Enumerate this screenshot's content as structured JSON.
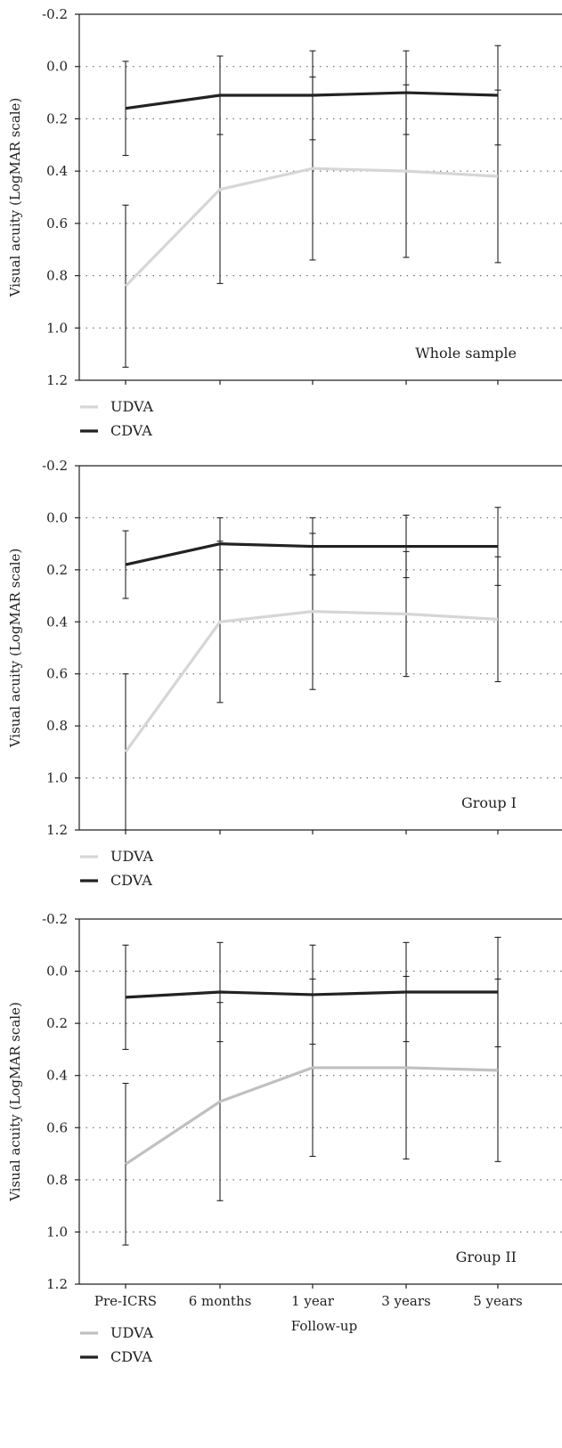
{
  "chart_data": [
    {
      "type": "line",
      "annotation": "Whole sample",
      "ylabel": "Visual acuity (LogMAR scale)",
      "xlabel": "",
      "ylim": [
        1.2,
        -0.2
      ],
      "yticks": [
        "-0.2",
        "0.0",
        "0.2",
        "0.4",
        "0.6",
        "0.8",
        "1.0",
        "1.2"
      ],
      "yticks_values": [
        -0.2,
        0.0,
        0.2,
        0.4,
        0.6,
        0.8,
        1.0,
        1.2
      ],
      "categories": [
        "Pre-ICRS",
        "6 months",
        "1 year",
        "3 years",
        "5 years"
      ],
      "show_xtick_labels": false,
      "grid": "horizontal dotted",
      "series": [
        {
          "name": "UDVA",
          "color": "#d6d6d6",
          "values": [
            0.84,
            0.47,
            0.39,
            0.4,
            0.42
          ],
          "error": [
            0.31,
            0.36,
            0.35,
            0.33,
            0.33
          ]
        },
        {
          "name": "CDVA",
          "color": "#222222",
          "values": [
            0.16,
            0.11,
            0.11,
            0.1,
            0.11
          ],
          "error": [
            0.18,
            0.15,
            0.17,
            0.16,
            0.19
          ]
        }
      ],
      "legend": [
        "UDVA",
        "CDVA"
      ]
    },
    {
      "type": "line",
      "annotation": "Group I",
      "ylabel": "Visual acuity (LogMAR scale)",
      "xlabel": "",
      "ylim": [
        1.2,
        -0.2
      ],
      "yticks": [
        "-0.2",
        "0.0",
        "0.2",
        "0.4",
        "0.6",
        "0.8",
        "1.0",
        "1.2"
      ],
      "yticks_values": [
        -0.2,
        0.0,
        0.2,
        0.4,
        0.6,
        0.8,
        1.0,
        1.2
      ],
      "categories": [
        "Pre-ICRS",
        "6 months",
        "1 year",
        "3 years",
        "5 years"
      ],
      "show_xtick_labels": false,
      "grid": "horizontal dotted",
      "series": [
        {
          "name": "UDVA",
          "color": "#d6d6d6",
          "values": [
            0.9,
            0.4,
            0.36,
            0.37,
            0.39
          ],
          "error": [
            0.3,
            0.31,
            0.3,
            0.24,
            0.24
          ]
        },
        {
          "name": "CDVA",
          "color": "#222222",
          "values": [
            0.18,
            0.1,
            0.11,
            0.11,
            0.11
          ],
          "error": [
            0.13,
            0.1,
            0.11,
            0.12,
            0.15
          ]
        }
      ],
      "legend": [
        "UDVA",
        "CDVA"
      ]
    },
    {
      "type": "line",
      "annotation": "Group II",
      "ylabel": "Visual acuity (LogMAR scale)",
      "xlabel": "Follow-up",
      "ylim": [
        1.2,
        -0.2
      ],
      "yticks": [
        "-0.2",
        "0.0",
        "0.2",
        "0.4",
        "0.6",
        "0.8",
        "1.0",
        "1.2"
      ],
      "yticks_values": [
        -0.2,
        0.0,
        0.2,
        0.4,
        0.6,
        0.8,
        1.0,
        1.2
      ],
      "categories": [
        "Pre-ICRS",
        "6 months",
        "1 year",
        "3 years",
        "5 years"
      ],
      "show_xtick_labels": true,
      "grid": "horizontal dotted",
      "series": [
        {
          "name": "UDVA",
          "color": "#c0c0c0",
          "values": [
            0.74,
            0.5,
            0.37,
            0.37,
            0.38
          ],
          "error": [
            0.31,
            0.38,
            0.34,
            0.35,
            0.35
          ]
        },
        {
          "name": "CDVA",
          "color": "#222222",
          "values": [
            0.1,
            0.08,
            0.09,
            0.08,
            0.08
          ],
          "error": [
            0.2,
            0.19,
            0.19,
            0.19,
            0.21
          ]
        }
      ],
      "legend": [
        "UDVA",
        "CDVA"
      ]
    }
  ]
}
